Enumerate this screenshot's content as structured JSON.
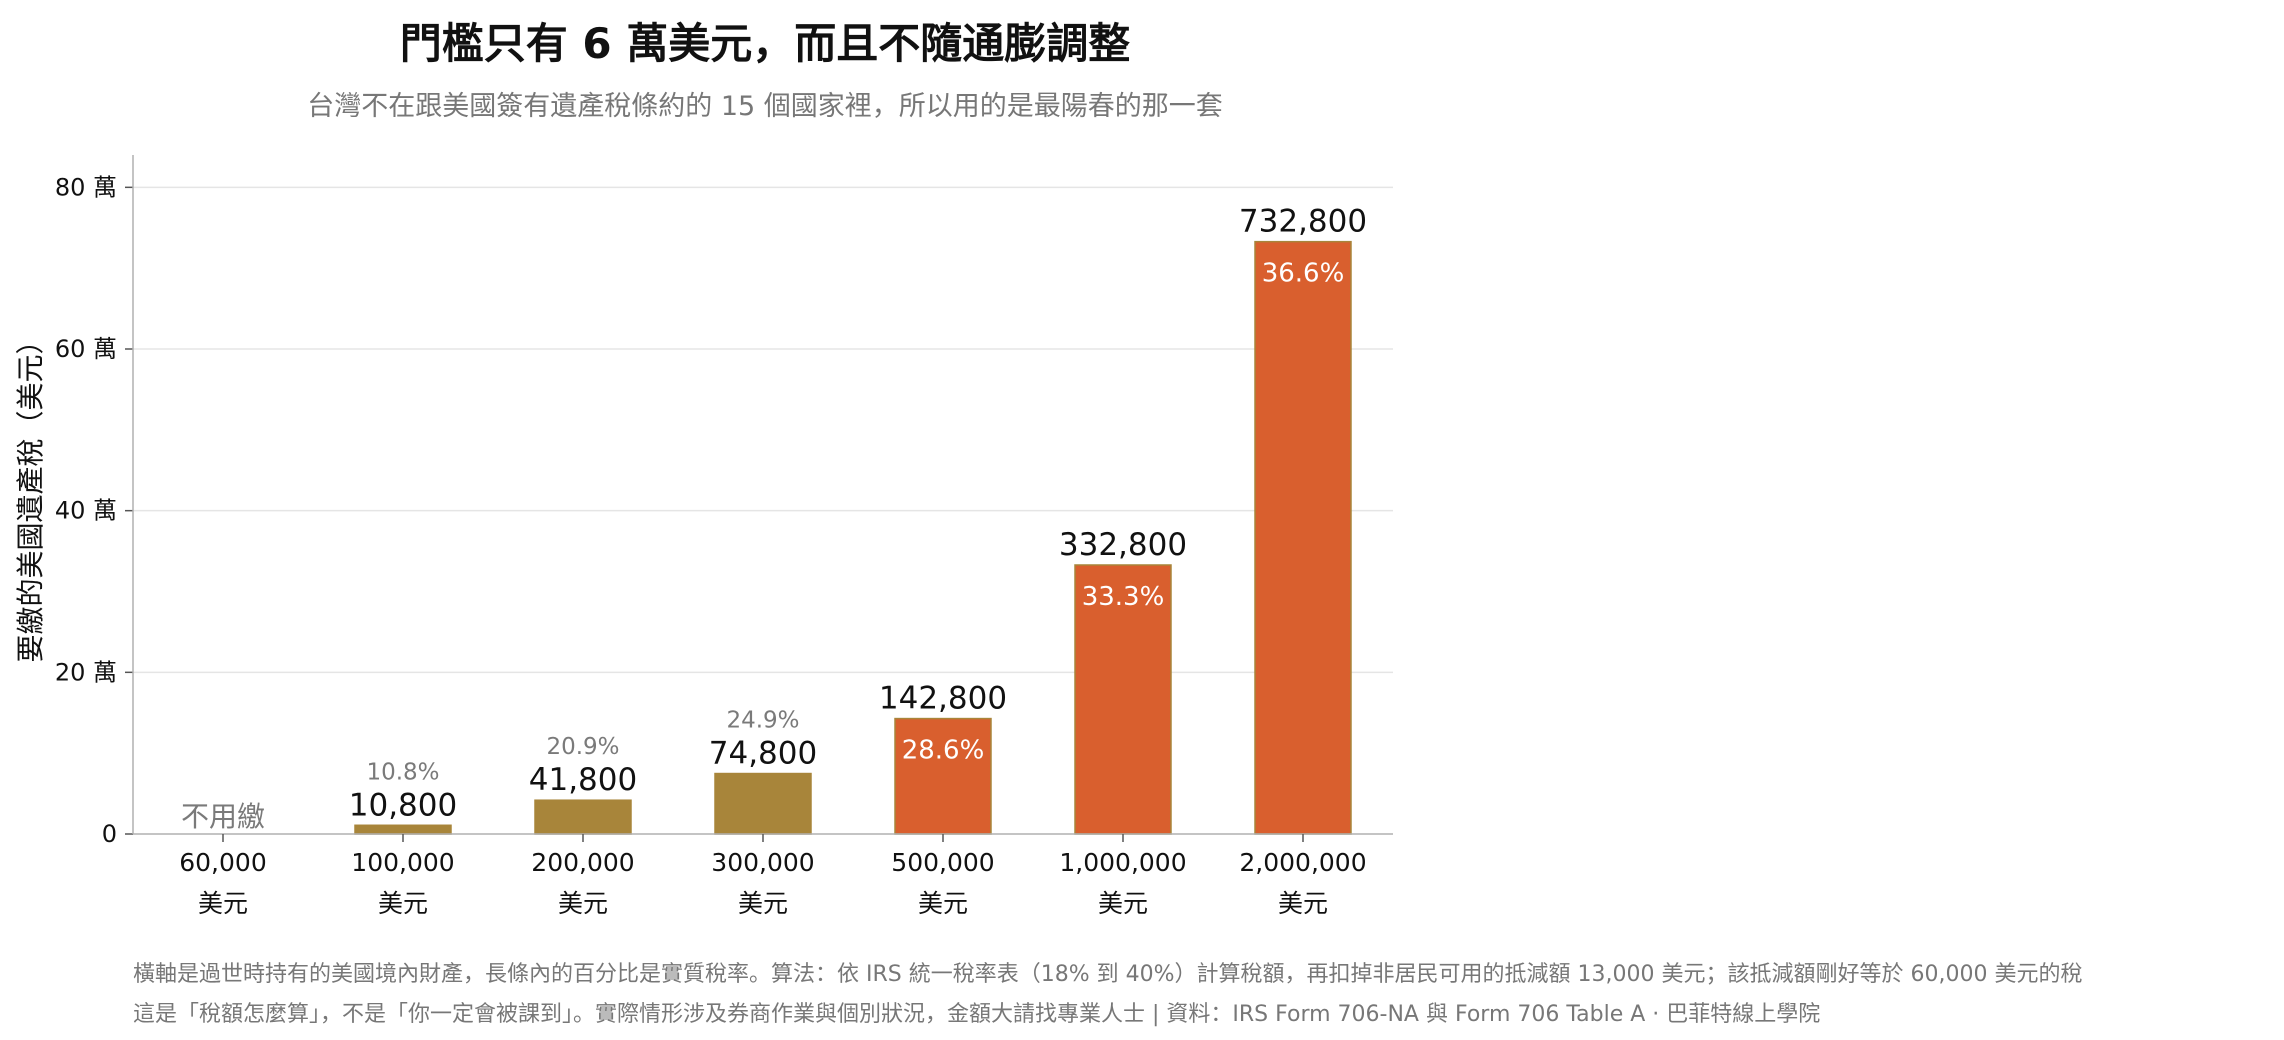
{
  "title": "門檻只有 6 萬美元，而且不隨通膨調整",
  "subtitle": "台灣不在跟美國簽有遺產稅條約的 15 個國家裡，所以用的是最陽春的那一套",
  "notes": [
    "橫軸是過世時持有的美國境內財產，長條內的百分比是實質稅率。算法：依 IRS 統一稅率表（18% 到 40%）計算稅額，再扣掉非居民可用的抵減額 13,000 美元；該抵減額剛好等於 60,000 美元的稅",
    "這是「稅額怎麼算」，不是「你一定會被課到」。實際情形涉及券商作業與個別狀況，金額大請找專業人士 | 資料：IRS Form 706-NA 與 Form 706 Table A ·   巴菲特線上學院"
  ],
  "colors": {
    "low": "#a8853a",
    "high": "#d95f2e",
    "grid": "#e5e5e5",
    "axis": "#b0b0b0",
    "muted": "#7a7a7a"
  },
  "chart_data": {
    "type": "bar",
    "ylabel": "要繳的美國遺產稅（美元）",
    "ylim": [
      0,
      840000
    ],
    "yticks": [
      0,
      200000,
      400000,
      600000,
      800000
    ],
    "ytick_labels": [
      "0",
      "20 萬",
      "40 萬",
      "60 萬",
      "80 萬"
    ],
    "categories": [
      {
        "amount": "60,000",
        "unit": "美元"
      },
      {
        "amount": "100,000",
        "unit": "美元"
      },
      {
        "amount": "200,000",
        "unit": "美元"
      },
      {
        "amount": "300,000",
        "unit": "美元"
      },
      {
        "amount": "500,000",
        "unit": "美元"
      },
      {
        "amount": "1,000,000",
        "unit": "美元"
      },
      {
        "amount": "2,000,000",
        "unit": "美元"
      }
    ],
    "values": [
      0,
      10800,
      41800,
      74800,
      142800,
      332800,
      732800
    ],
    "value_labels": [
      "不用繳",
      "10,800",
      "41,800",
      "74,800",
      "142,800",
      "332,800",
      "732,800"
    ],
    "rate_labels": [
      "",
      "10.8%",
      "20.9%",
      "24.9%",
      "28.6%",
      "33.3%",
      "36.6%"
    ],
    "bar_colors": [
      "low",
      "low",
      "low",
      "low",
      "high",
      "high",
      "high"
    ],
    "grid": true
  }
}
